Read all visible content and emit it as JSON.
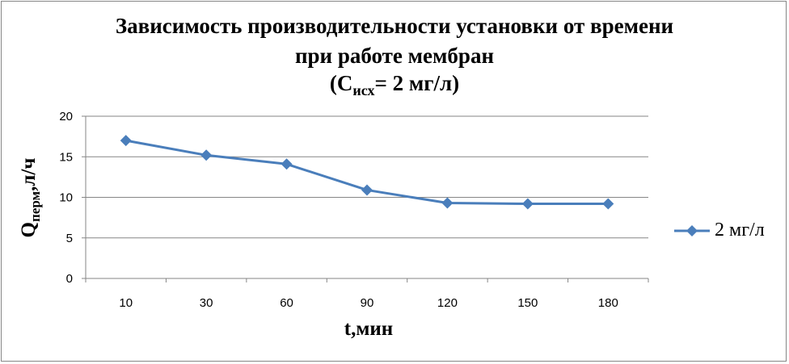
{
  "chart_data": {
    "type": "line",
    "title_line1": "Зависимость производительности установки от времени",
    "title_line2": "при работе мембран",
    "title_line3_prefix": "(C",
    "title_line3_sub": "исх",
    "title_line3_suffix": "= 2 мг/л)",
    "ylabel_main": "Q",
    "ylabel_sub": "перм",
    "ylabel_suffix": ",л/ч",
    "xlabel": "t,мин",
    "categories": [
      "10",
      "30",
      "60",
      "90",
      "120",
      "150",
      "180"
    ],
    "series": [
      {
        "name": "2 мг/л",
        "values": [
          17.0,
          15.2,
          14.1,
          10.9,
          9.3,
          9.2,
          9.2
        ]
      }
    ],
    "ylim": [
      0,
      20
    ],
    "yticks": [
      0,
      5,
      10,
      15,
      20
    ],
    "grid": true,
    "legend_position": "right",
    "series_color": "#4a7ebb",
    "grid_color": "#868686"
  }
}
